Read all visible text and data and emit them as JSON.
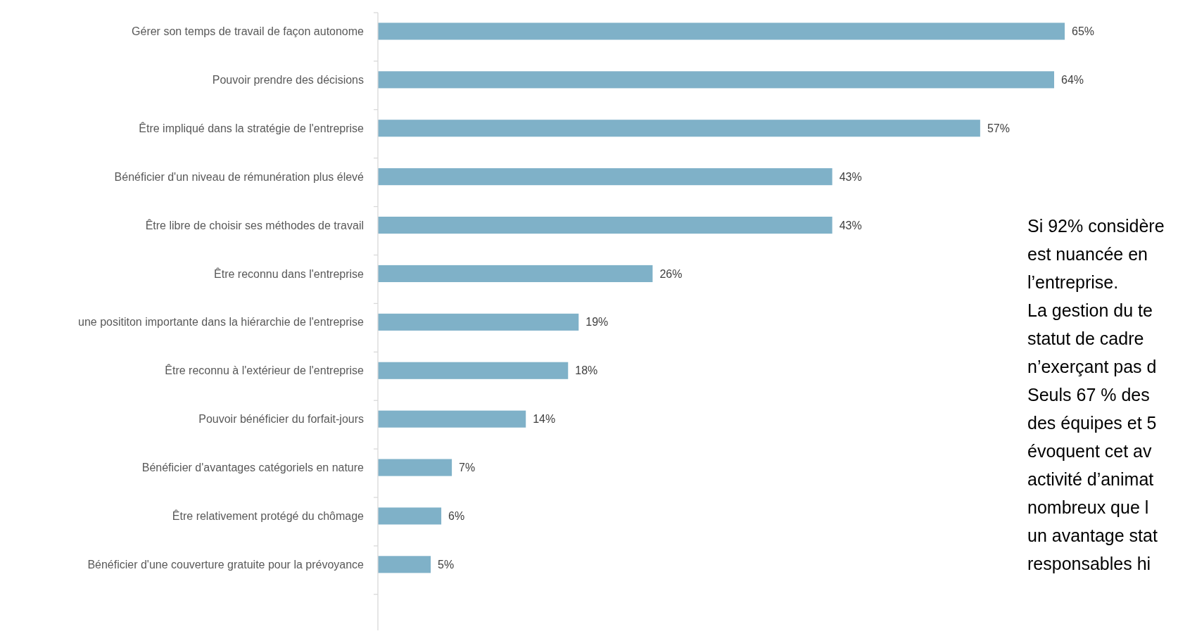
{
  "chart_data": {
    "type": "bar",
    "orientation": "horizontal",
    "color": "#7fb1c8",
    "categories": [
      "Gérer son temps de travail de façon autonome",
      "Pouvoir prendre des décisions",
      "Être impliqué dans la stratégie de l'entreprise",
      "Bénéficier d'un niveau de rémunération plus élevé",
      "Être libre de choisir ses méthodes de travail",
      "Être reconnu dans l'entreprise",
      "une posititon importante dans la hiérarchie de l'entreprise",
      "Être reconnu à l'extérieur de l'entreprise",
      "Pouvoir bénéficier du forfait-jours",
      "Bénéficier d'avantages catégoriels en nature",
      "Être relativement protégé du chômage",
      "Bénéficier d'une couverture gratuite pour la prévoyance"
    ],
    "values": [
      65,
      64,
      57,
      43,
      43,
      26,
      19,
      18,
      14,
      7,
      6,
      5
    ],
    "value_labels": [
      "65%",
      "64%",
      "57%",
      "43%",
      "43%",
      "26%",
      "19%",
      "18%",
      "14%",
      "7%",
      "6%",
      "5%"
    ],
    "annotations": [
      "Si 92% considère",
      "est nuancée en",
      "l’entreprise.",
      "La gestion du te",
      "statut de cadre",
      "n’exerçant pas d",
      "Seuls 67 % des",
      "des équipes et 5",
      "évoquent cet av",
      "activité d’animat",
      "nombreux que l",
      "un avantage stat",
      "responsables hi"
    ]
  }
}
